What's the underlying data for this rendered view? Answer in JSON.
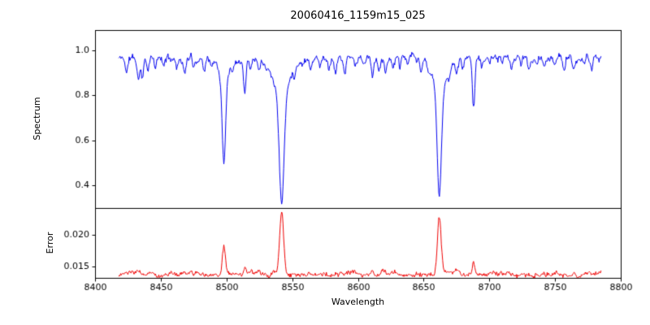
{
  "chart_data": {
    "type": "line",
    "title": "20060416_1159m15_025",
    "xlabel": "Wavelength",
    "x_range": [
      8400,
      8800
    ],
    "x_data_range": [
      8418,
      8785
    ],
    "sample_step": 0.5,
    "grid": false,
    "legend": "none",
    "x_ticks": [
      {
        "value": 8400,
        "label": "8400"
      },
      {
        "value": 8450,
        "label": "8450"
      },
      {
        "value": 8500,
        "label": "8500"
      },
      {
        "value": 8550,
        "label": "8550"
      },
      {
        "value": 8600,
        "label": "8600"
      },
      {
        "value": 8650,
        "label": "8650"
      },
      {
        "value": 8700,
        "label": "8700"
      },
      {
        "value": 8750,
        "label": "8750"
      },
      {
        "value": 8800,
        "label": "8800"
      }
    ],
    "panels": [
      {
        "name": "spectrum",
        "ylabel": "Spectrum",
        "color": "#0000ee",
        "ylim": [
          0.3,
          1.09
        ],
        "y_ticks": [
          {
            "value": 0.4,
            "label": "0.4"
          },
          {
            "value": 0.6,
            "label": "0.6"
          },
          {
            "value": 0.8,
            "label": "0.8"
          },
          {
            "value": 1.0,
            "label": "1.0"
          }
        ],
        "base": 0.965,
        "noise_smooth": 0.02,
        "noise_jitter": 0.009,
        "seed": 11,
        "line_format": [
          "center_angstrom",
          "depth",
          "gaussian_width"
        ],
        "lines": [
          [
            8498,
            0.38,
            1.3
          ],
          [
            8498,
            0.08,
            4.0
          ],
          [
            8542,
            0.48,
            1.8
          ],
          [
            8542,
            0.16,
            6.0
          ],
          [
            8662,
            0.47,
            1.6
          ],
          [
            8662,
            0.14,
            5.0
          ],
          [
            8514,
            0.15,
            0.9
          ],
          [
            8688,
            0.2,
            0.9
          ],
          [
            8424,
            0.07,
            0.8
          ],
          [
            8433,
            0.1,
            1.0
          ],
          [
            8436,
            0.08,
            0.8
          ],
          [
            8440,
            0.04,
            0.8
          ],
          [
            8446,
            0.05,
            0.8
          ],
          [
            8452,
            0.04,
            0.8
          ],
          [
            8462,
            0.04,
            0.8
          ],
          [
            8468,
            0.07,
            0.9
          ],
          [
            8475,
            0.04,
            0.8
          ],
          [
            8483,
            0.05,
            0.8
          ],
          [
            8489,
            0.04,
            0.8
          ],
          [
            8505,
            0.04,
            0.8
          ],
          [
            8518,
            0.04,
            0.8
          ],
          [
            8525,
            0.03,
            0.8
          ],
          [
            8552,
            0.03,
            0.8
          ],
          [
            8558,
            0.02,
            0.8
          ],
          [
            8564,
            0.04,
            0.8
          ],
          [
            8571,
            0.03,
            0.8
          ],
          [
            8578,
            0.04,
            0.8
          ],
          [
            8583,
            0.06,
            0.9
          ],
          [
            8590,
            0.07,
            0.9
          ],
          [
            8598,
            0.04,
            0.8
          ],
          [
            8605,
            0.04,
            0.8
          ],
          [
            8611,
            0.09,
            0.9
          ],
          [
            8616,
            0.05,
            0.8
          ],
          [
            8621,
            0.07,
            0.9
          ],
          [
            8627,
            0.04,
            0.8
          ],
          [
            8632,
            0.05,
            0.8
          ],
          [
            8638,
            0.04,
            0.8
          ],
          [
            8648,
            0.07,
            0.9
          ],
          [
            8654,
            0.04,
            0.8
          ],
          [
            8669,
            0.05,
            0.8
          ],
          [
            8675,
            0.07,
            0.9
          ],
          [
            8680,
            0.05,
            0.8
          ],
          [
            8694,
            0.04,
            0.8
          ],
          [
            8700,
            0.03,
            0.8
          ],
          [
            8710,
            0.04,
            0.8
          ],
          [
            8717,
            0.05,
            0.8
          ],
          [
            8724,
            0.04,
            0.8
          ],
          [
            8730,
            0.05,
            0.8
          ],
          [
            8736,
            0.04,
            0.8
          ],
          [
            8742,
            0.05,
            0.8
          ],
          [
            8750,
            0.04,
            0.8
          ],
          [
            8757,
            0.05,
            0.8
          ],
          [
            8764,
            0.06,
            0.9
          ],
          [
            8772,
            0.04,
            0.8
          ],
          [
            8778,
            0.05,
            0.8
          ]
        ]
      },
      {
        "name": "error",
        "ylabel": "Error",
        "color": "#ee0000",
        "ylim": [
          0.0132,
          0.0243
        ],
        "y_ticks": [
          {
            "value": 0.015,
            "label": "0.015"
          },
          {
            "value": 0.02,
            "label": "0.020"
          }
        ],
        "base": 0.0138,
        "noise_smooth": 0.0005,
        "noise_jitter": 0.00022,
        "seed": 23,
        "peak_format": [
          "center_angstrom",
          "height",
          "gaussian_width"
        ],
        "peaks": [
          [
            8433,
            0.0006,
            1.0
          ],
          [
            8468,
            0.0004,
            0.9
          ],
          [
            8498,
            0.0047,
            1.2
          ],
          [
            8514,
            0.0012,
            0.9
          ],
          [
            8542,
            0.01,
            1.5
          ],
          [
            8592,
            0.0004,
            0.9
          ],
          [
            8611,
            0.0007,
            0.9
          ],
          [
            8662,
            0.009,
            1.4
          ],
          [
            8675,
            0.0006,
            0.9
          ],
          [
            8688,
            0.0024,
            0.9
          ],
          [
            8764,
            0.0005,
            0.9
          ]
        ]
      }
    ]
  }
}
